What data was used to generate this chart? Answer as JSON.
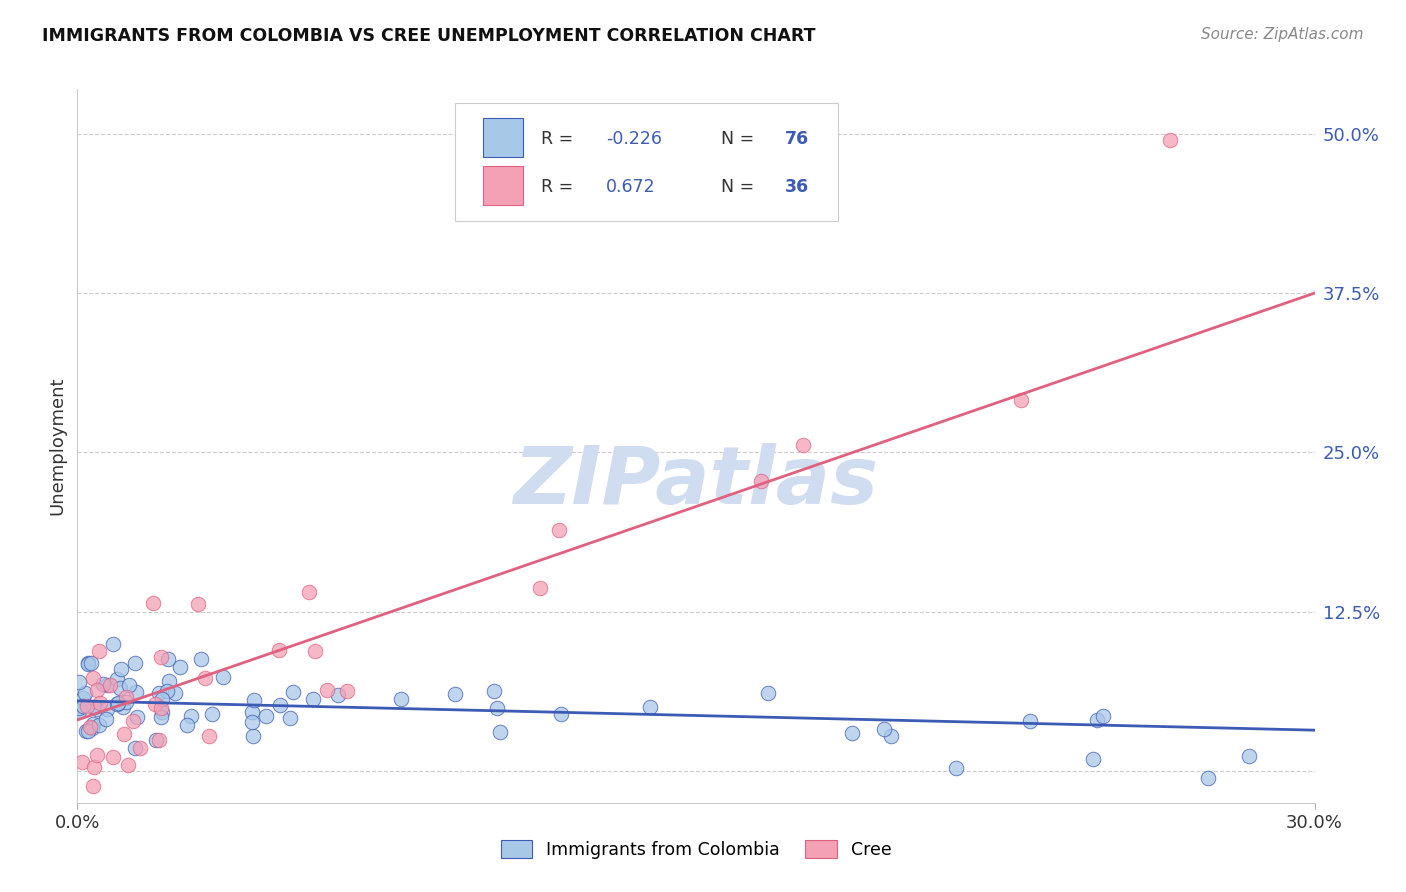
{
  "title": "IMMIGRANTS FROM COLOMBIA VS CREE UNEMPLOYMENT CORRELATION CHART",
  "source": "Source: ZipAtlas.com",
  "ylabel": "Unemployment",
  "ytick_values": [
    0.0,
    0.125,
    0.25,
    0.375,
    0.5
  ],
  "ytick_labels": [
    "0.0%",
    "12.5%",
    "25.0%",
    "37.5%",
    "50.0%"
  ],
  "xlim": [
    0.0,
    0.3
  ],
  "ylim": [
    -0.025,
    0.535
  ],
  "color_blue": "#A8C8E8",
  "color_pink": "#F4A0B5",
  "line_blue": "#3B5BB5",
  "line_pink": "#E06080",
  "watermark_color": "#D0DCF0",
  "blue_line_x0": 0.0,
  "blue_line_y0": 0.055,
  "blue_line_x1": 0.3,
  "blue_line_y1": 0.032,
  "pink_line_x0": 0.0,
  "pink_line_y0": 0.04,
  "pink_line_x1": 0.3,
  "pink_line_y1": 0.375
}
